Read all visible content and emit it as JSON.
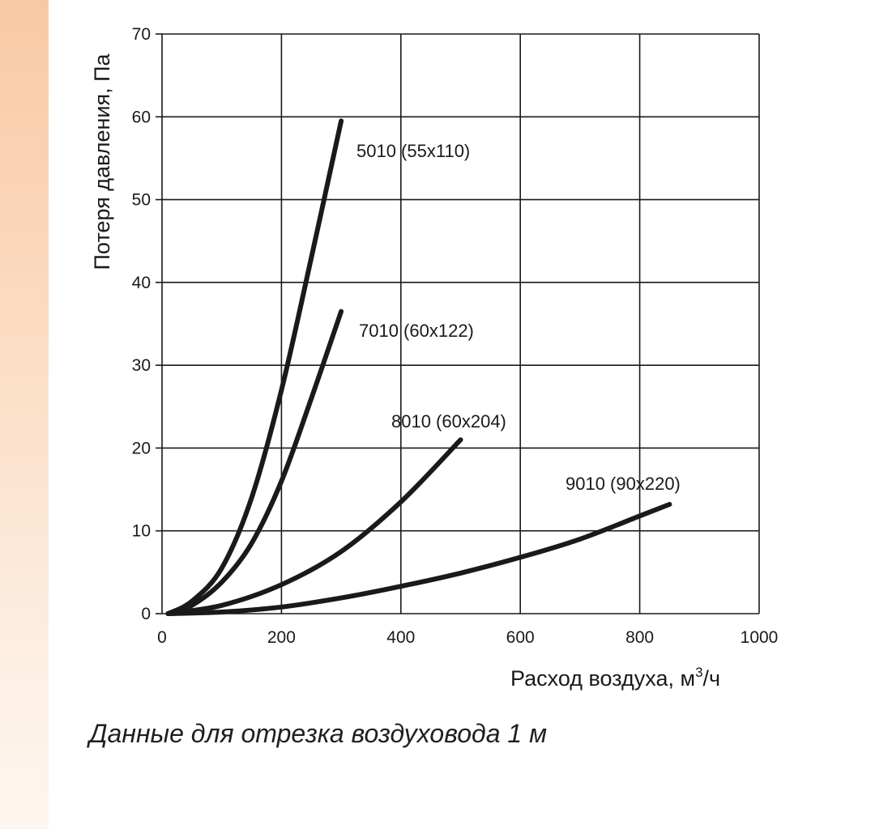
{
  "colors": {
    "side_strip": "#f9c9a4",
    "line": "#1a1a1a",
    "grid": "#1a1a1a"
  },
  "caption": "Данные для отрезка воздуховода 1 м",
  "chart_data": {
    "type": "line",
    "xlabel_main": "Расход воздуха, м",
    "xlabel_sup": "3",
    "xlabel_tail": "/ч",
    "ylabel": "Потеря давления, Па",
    "xlim": [
      0,
      1000
    ],
    "ylim": [
      0,
      70
    ],
    "xticks": [
      0,
      200,
      400,
      600,
      800,
      1000
    ],
    "yticks": [
      0,
      10,
      20,
      30,
      40,
      50,
      60,
      70
    ],
    "grid": true,
    "series": [
      {
        "name": "5010 (55x110)",
        "x": [
          10,
          50,
          100,
          150,
          200,
          250,
          300
        ],
        "y": [
          0,
          1.5,
          5.5,
          14,
          27,
          43,
          59.5
        ]
      },
      {
        "name": "7010 (60x122)",
        "x": [
          10,
          50,
          100,
          150,
          200,
          250,
          300
        ],
        "y": [
          0,
          1,
          3.8,
          8.5,
          16,
          26,
          36.5
        ]
      },
      {
        "name": "8010 (60x204)",
        "x": [
          10,
          100,
          200,
          300,
          400,
          500
        ],
        "y": [
          0,
          1,
          3.5,
          7.5,
          13.5,
          21
        ]
      },
      {
        "name": "9010 (90x220)",
        "x": [
          10,
          100,
          200,
          300,
          400,
          500,
          600,
          700,
          800,
          850
        ],
        "y": [
          0,
          0.2,
          0.8,
          1.9,
          3.3,
          4.9,
          6.8,
          9,
          11.8,
          13.2
        ]
      }
    ]
  }
}
